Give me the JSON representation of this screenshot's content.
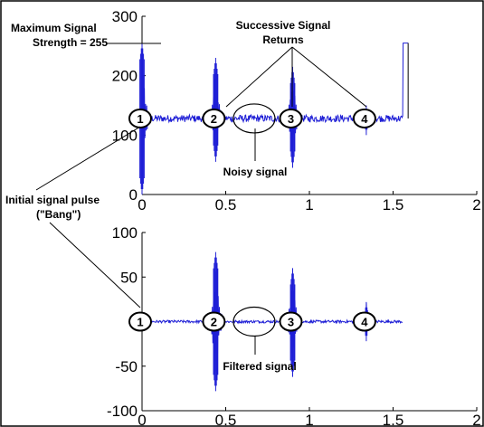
{
  "chart_data": [
    {
      "id": "top",
      "type": "line",
      "title": "",
      "xlabel": "",
      "ylabel": "",
      "xlim": [
        0,
        2
      ],
      "ylim": [
        0,
        300
      ],
      "xticks": [
        "0",
        "0.5",
        "1",
        "1.5",
        "2"
      ],
      "yticks": [
        "0",
        "100",
        "200",
        "300"
      ],
      "grid": false,
      "line_color": "#1f1fd6",
      "baseline": 128,
      "noise_amplitude": 6,
      "trace_end_x": 1.56,
      "trace_end_jump_to": 255,
      "pulses": [
        {
          "x": 0.0,
          "max": 255,
          "min": 0
        },
        {
          "x": 0.44,
          "max": 230,
          "min": 55
        },
        {
          "x": 0.9,
          "max": 215,
          "min": 45
        },
        {
          "x": 1.34,
          "max": 150,
          "min": 100
        }
      ],
      "signal_label": "Noisy signal"
    },
    {
      "id": "bottom",
      "type": "line",
      "title": "",
      "xlabel": "",
      "ylabel": "",
      "xlim": [
        0,
        2
      ],
      "ylim": [
        -100,
        100
      ],
      "xticks": [
        "0",
        "0.5",
        "1",
        "1.5",
        "2"
      ],
      "yticks": [
        "-100",
        "-50",
        "0",
        "50",
        "100"
      ],
      "grid": false,
      "line_color": "#1f1fd6",
      "baseline": 0,
      "noise_amplitude": 1.5,
      "trace_end_x": 1.56,
      "pulses": [
        {
          "x": 0.0,
          "max": 8,
          "min": -8
        },
        {
          "x": 0.44,
          "max": 78,
          "min": -78
        },
        {
          "x": 0.9,
          "max": 60,
          "min": -62
        },
        {
          "x": 1.34,
          "max": 22,
          "min": -22
        }
      ],
      "signal_label": "Filtered signal"
    }
  ],
  "annotations": {
    "max_signal_line1": "Maximum Signal",
    "max_signal_line2": "Strength = 255",
    "returns_line1": "Successive Signal",
    "returns_line2": "Returns",
    "initial_line1": "Initial signal pulse",
    "initial_line2": "(\"Bang\")",
    "noisy": "Noisy signal",
    "filtered": "Filtered signal"
  },
  "markers": [
    "1",
    "2",
    "3",
    "4"
  ]
}
